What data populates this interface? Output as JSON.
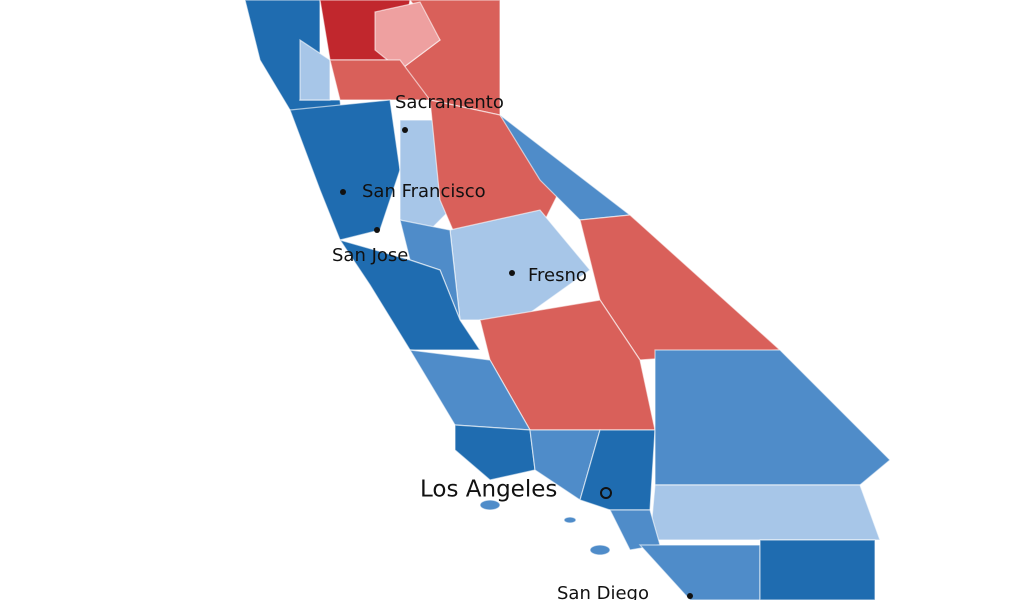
{
  "cities": [
    {
      "label": "Sacramento"
    },
    {
      "label": "San Francisco"
    },
    {
      "label": "San Jose"
    },
    {
      "label": "Fresno"
    },
    {
      "label": "Los Angeles"
    },
    {
      "label": "San Diego"
    }
  ]
}
